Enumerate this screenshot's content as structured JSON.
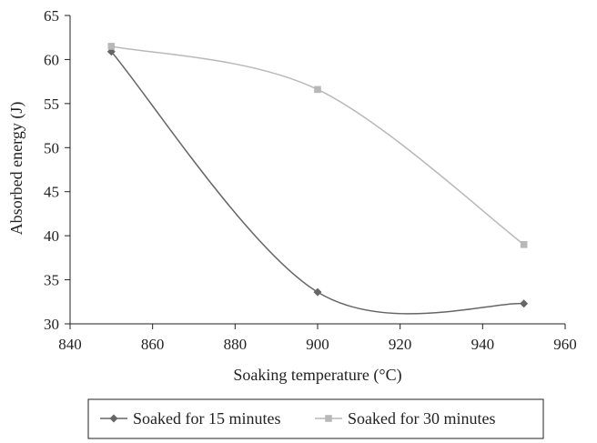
{
  "chart_data": {
    "type": "line",
    "title": "",
    "xlabel": "Soaking temperature (°C)",
    "ylabel": "Absorbed energy (J)",
    "xlim": [
      840,
      960
    ],
    "ylim": [
      30,
      65
    ],
    "x_ticks": [
      840,
      860,
      880,
      900,
      920,
      940,
      960
    ],
    "y_ticks": [
      30,
      35,
      40,
      45,
      50,
      55,
      60,
      65
    ],
    "smooth": true,
    "grid": false,
    "legend_position": "bottom",
    "series": [
      {
        "name": "Soaked for 15 minutes",
        "x": [
          850,
          900,
          950
        ],
        "y": [
          60.9,
          33.6,
          32.3
        ],
        "color": "#666666",
        "marker": "diamond"
      },
      {
        "name": "Soaked for 30 minutes",
        "x": [
          850,
          900,
          950
        ],
        "y": [
          61.5,
          56.6,
          39.0
        ],
        "color": "#b8b8b8",
        "marker": "square"
      }
    ]
  }
}
